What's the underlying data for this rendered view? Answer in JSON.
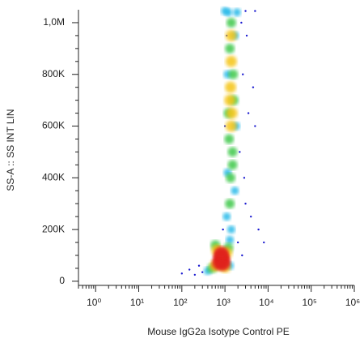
{
  "chart_data": {
    "type": "scatter",
    "xlabel": "Mouse IgG2a Isotype Control PE",
    "ylabel": "SS-A :: SS INT LIN",
    "xscale": "log",
    "xlim": [
      0.4,
      1000000
    ],
    "ylim": [
      -16000,
      1050000
    ],
    "minor_ticks": true,
    "xticks": [
      {
        "value": 1,
        "label": "10⁰"
      },
      {
        "value": 10,
        "label": "10¹"
      },
      {
        "value": 100,
        "label": "10²"
      },
      {
        "value": 1000,
        "label": "10³"
      },
      {
        "value": 10000,
        "label": "10⁴"
      },
      {
        "value": 100000,
        "label": "10⁵"
      },
      {
        "value": 1000000,
        "label": "10⁶"
      }
    ],
    "yticks": [
      0,
      {
        "value": 200000,
        "label": "200K"
      },
      {
        "value": 400000,
        "label": "400K"
      },
      {
        "value": 600000,
        "label": "600K"
      },
      {
        "value": 800000,
        "label": "800K"
      },
      {
        "value": 1000000,
        "label": "1,0M"
      }
    ],
    "series": [
      {
        "color": "#1a1ad0",
        "x": [
          100,
          150,
          200,
          300,
          2500,
          3000,
          4000,
          2200,
          3500,
          5000,
          2600,
          3200,
          6000,
          2000,
          900,
          1000,
          1100,
          2800,
          4500,
          2400,
          5000,
          3000,
          250,
          8000
        ],
        "values": [
          30000,
          45000,
          25000,
          35000,
          100000,
          300000,
          250000,
          500000,
          650000,
          600000,
          800000,
          950000,
          200000,
          150000,
          200000,
          600000,
          950000,
          400000,
          750000,
          1000000,
          1045000,
          1045000,
          60000,
          150000
        ]
      },
      {
        "color": "#22b8e8",
        "x": [
          1100,
          1700,
          1150,
          1800,
          1150,
          1700,
          1400,
          1300,
          400,
          1300,
          1200,
          1900,
          1000
        ],
        "values": [
          250000,
          350000,
          420000,
          600000,
          800000,
          950000,
          200000,
          160000,
          40000,
          60000,
          1040000,
          1040000,
          1045000
        ]
      },
      {
        "color": "#3cc84a",
        "x": [
          1300,
          1350,
          1500,
          1250,
          1550,
          1300,
          1400,
          1500,
          1200,
          1600,
          500,
          1200,
          600
        ],
        "values": [
          300000,
          400000,
          500000,
          550000,
          800000,
          900000,
          1000000,
          450000,
          650000,
          700000,
          50000,
          130000,
          140000
        ]
      },
      {
        "color": "#f5c518",
        "x": [
          600,
          1100,
          650,
          1000,
          1400,
          1350,
          1450,
          1400,
          1300,
          1400
        ],
        "values": [
          60000,
          110000,
          120000,
          55000,
          850000,
          750000,
          650000,
          600000,
          700000,
          950000
        ]
      },
      {
        "color": "#e0241c",
        "x": [
          800,
          900,
          700,
          850,
          950,
          750,
          880,
          820
        ],
        "values": [
          80000,
          90000,
          70000,
          100000,
          75000,
          95000,
          65000,
          110000
        ]
      }
    ]
  }
}
